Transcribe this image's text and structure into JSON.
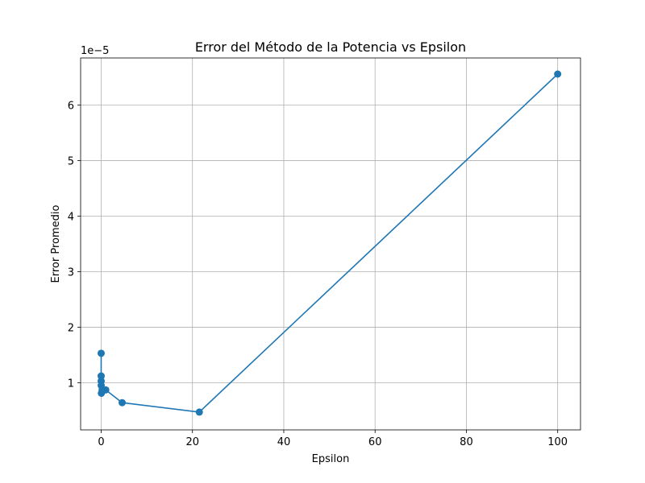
{
  "chart_data": {
    "type": "line",
    "title": "Error del Método de la Potencia vs Epsilon",
    "xlabel": "Epsilon",
    "ylabel": "Error Promedio",
    "y_offset_label": "1e−5",
    "y_scale_factor": 1e-05,
    "xlim": [
      -4.5,
      105
    ],
    "ylim": [
      0.15,
      6.85
    ],
    "x_ticks": [
      0,
      20,
      40,
      60,
      80,
      100
    ],
    "x_tick_labels": [
      "0",
      "20",
      "40",
      "60",
      "80",
      "100"
    ],
    "y_ticks": [
      1,
      2,
      3,
      4,
      5,
      6
    ],
    "y_tick_labels": [
      "1",
      "2",
      "3",
      "4",
      "5",
      "6"
    ],
    "grid": true,
    "marker": "circle",
    "color": "#1f77b4",
    "series": [
      {
        "x": [
          0.0001,
          0.0005,
          0.0022,
          0.01,
          0.046,
          0.22,
          1.0,
          4.6,
          21.5,
          100
        ],
        "y": [
          1.53,
          1.12,
          1.03,
          0.95,
          0.81,
          0.87,
          0.87,
          0.64,
          0.47,
          6.56
        ]
      }
    ]
  }
}
